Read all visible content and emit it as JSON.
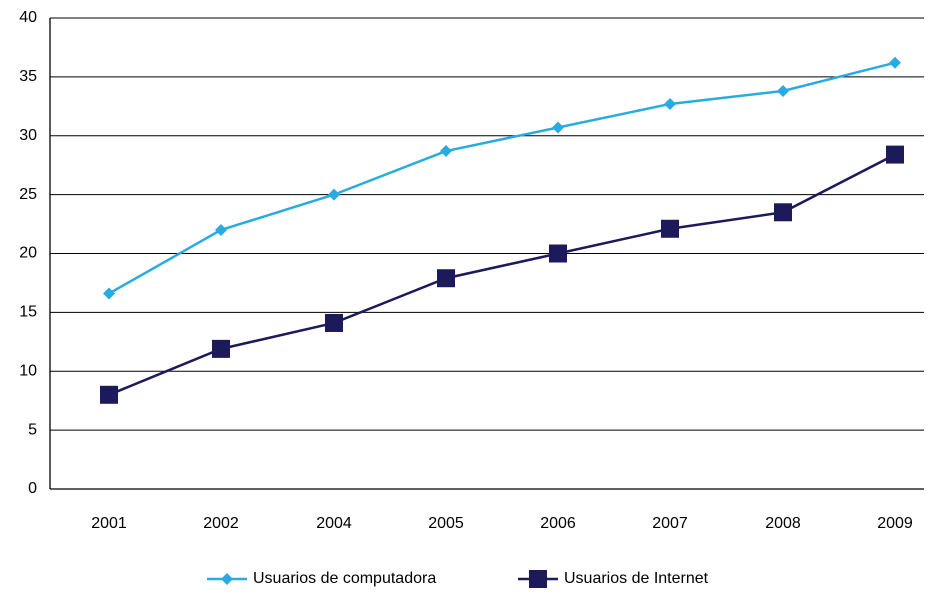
{
  "chart_data": {
    "type": "line",
    "categories": [
      "2001",
      "2002",
      "2004",
      "2005",
      "2006",
      "2007",
      "2008",
      "2009"
    ],
    "ylim": [
      0,
      40
    ],
    "yticks": [
      0,
      5,
      10,
      15,
      20,
      25,
      30,
      35,
      40
    ],
    "grid": true,
    "legend_position": "bottom",
    "series": [
      {
        "name": "Usuarios de computadora",
        "color": "#29abe2",
        "marker": "diamond",
        "values": [
          16.6,
          22.0,
          25.0,
          28.7,
          30.7,
          32.7,
          33.8,
          36.2
        ]
      },
      {
        "name": "Usuarios de Internet",
        "color": "#1d1a5c",
        "marker": "square",
        "values": [
          8.0,
          11.9,
          14.1,
          17.9,
          20.0,
          22.1,
          23.5,
          28.4
        ]
      }
    ]
  }
}
